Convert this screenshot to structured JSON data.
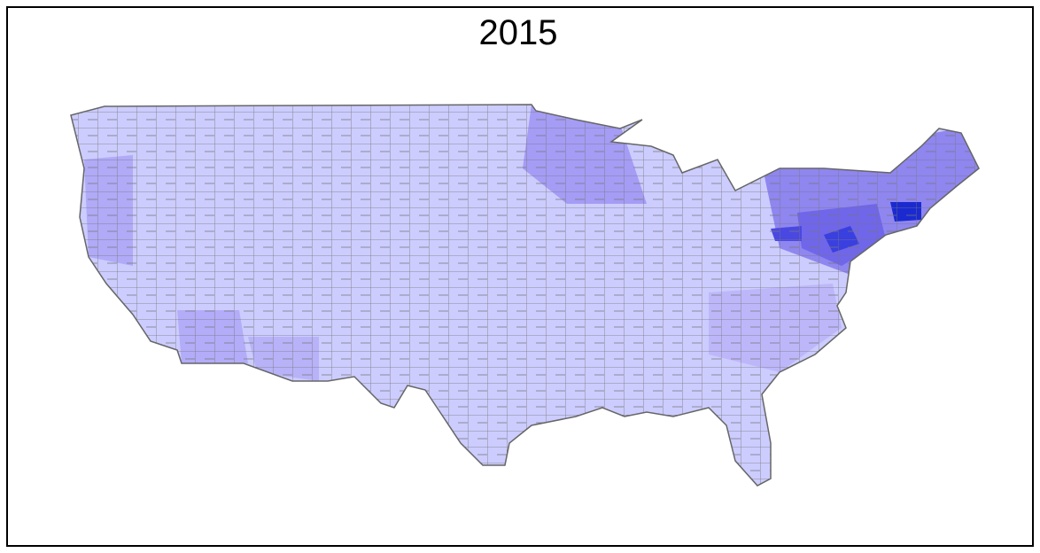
{
  "title": "2015"
}
